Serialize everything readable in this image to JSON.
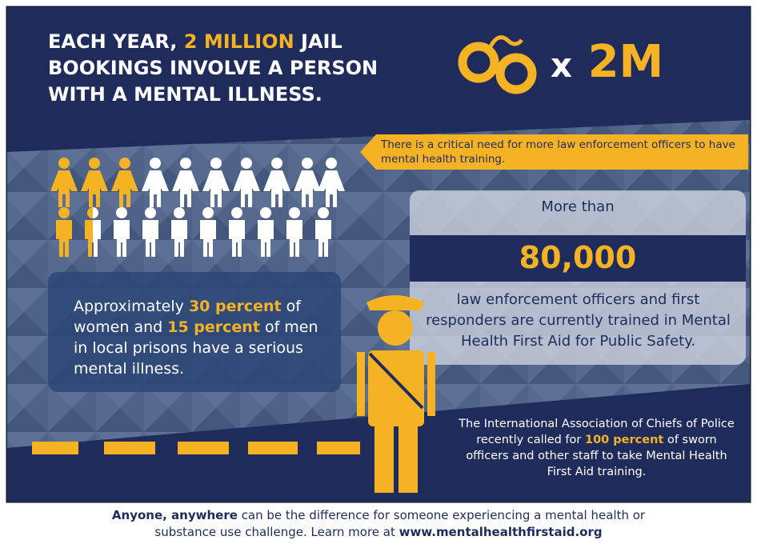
{
  "header": {
    "title": [
      "EACH YEAR, ",
      "2 MILLION",
      " JAIL BOOKINGS INVOLVE A PERSON WITH A MENTAL ILLNESS."
    ],
    "multiplier": [
      "x",
      "2M"
    ]
  },
  "banner": "There is a critical need for more law enforcement officers to have mental health training.",
  "stat": {
    "lead": "More than",
    "number": "80,000",
    "body": "law enforcement officers and first responders are currently trained in Mental Health First Aid for Public Safety."
  },
  "prisons": [
    "Approximately ",
    "30 percent",
    " of women and ",
    "15 percent",
    " of men in local prisons have a serious mental illness."
  ],
  "iacp": [
    "The International Association of Chiefs of Police recently called for ",
    "100 percent",
    " of sworn officers and other staff to take Mental Health First Aid training."
  ],
  "footer": [
    "Anyone, anywhere",
    " can be the difference for someone experiencing a mental health or substance use challenge. Learn more at ",
    "www.mentalhealthfirstaid.org"
  ]
}
